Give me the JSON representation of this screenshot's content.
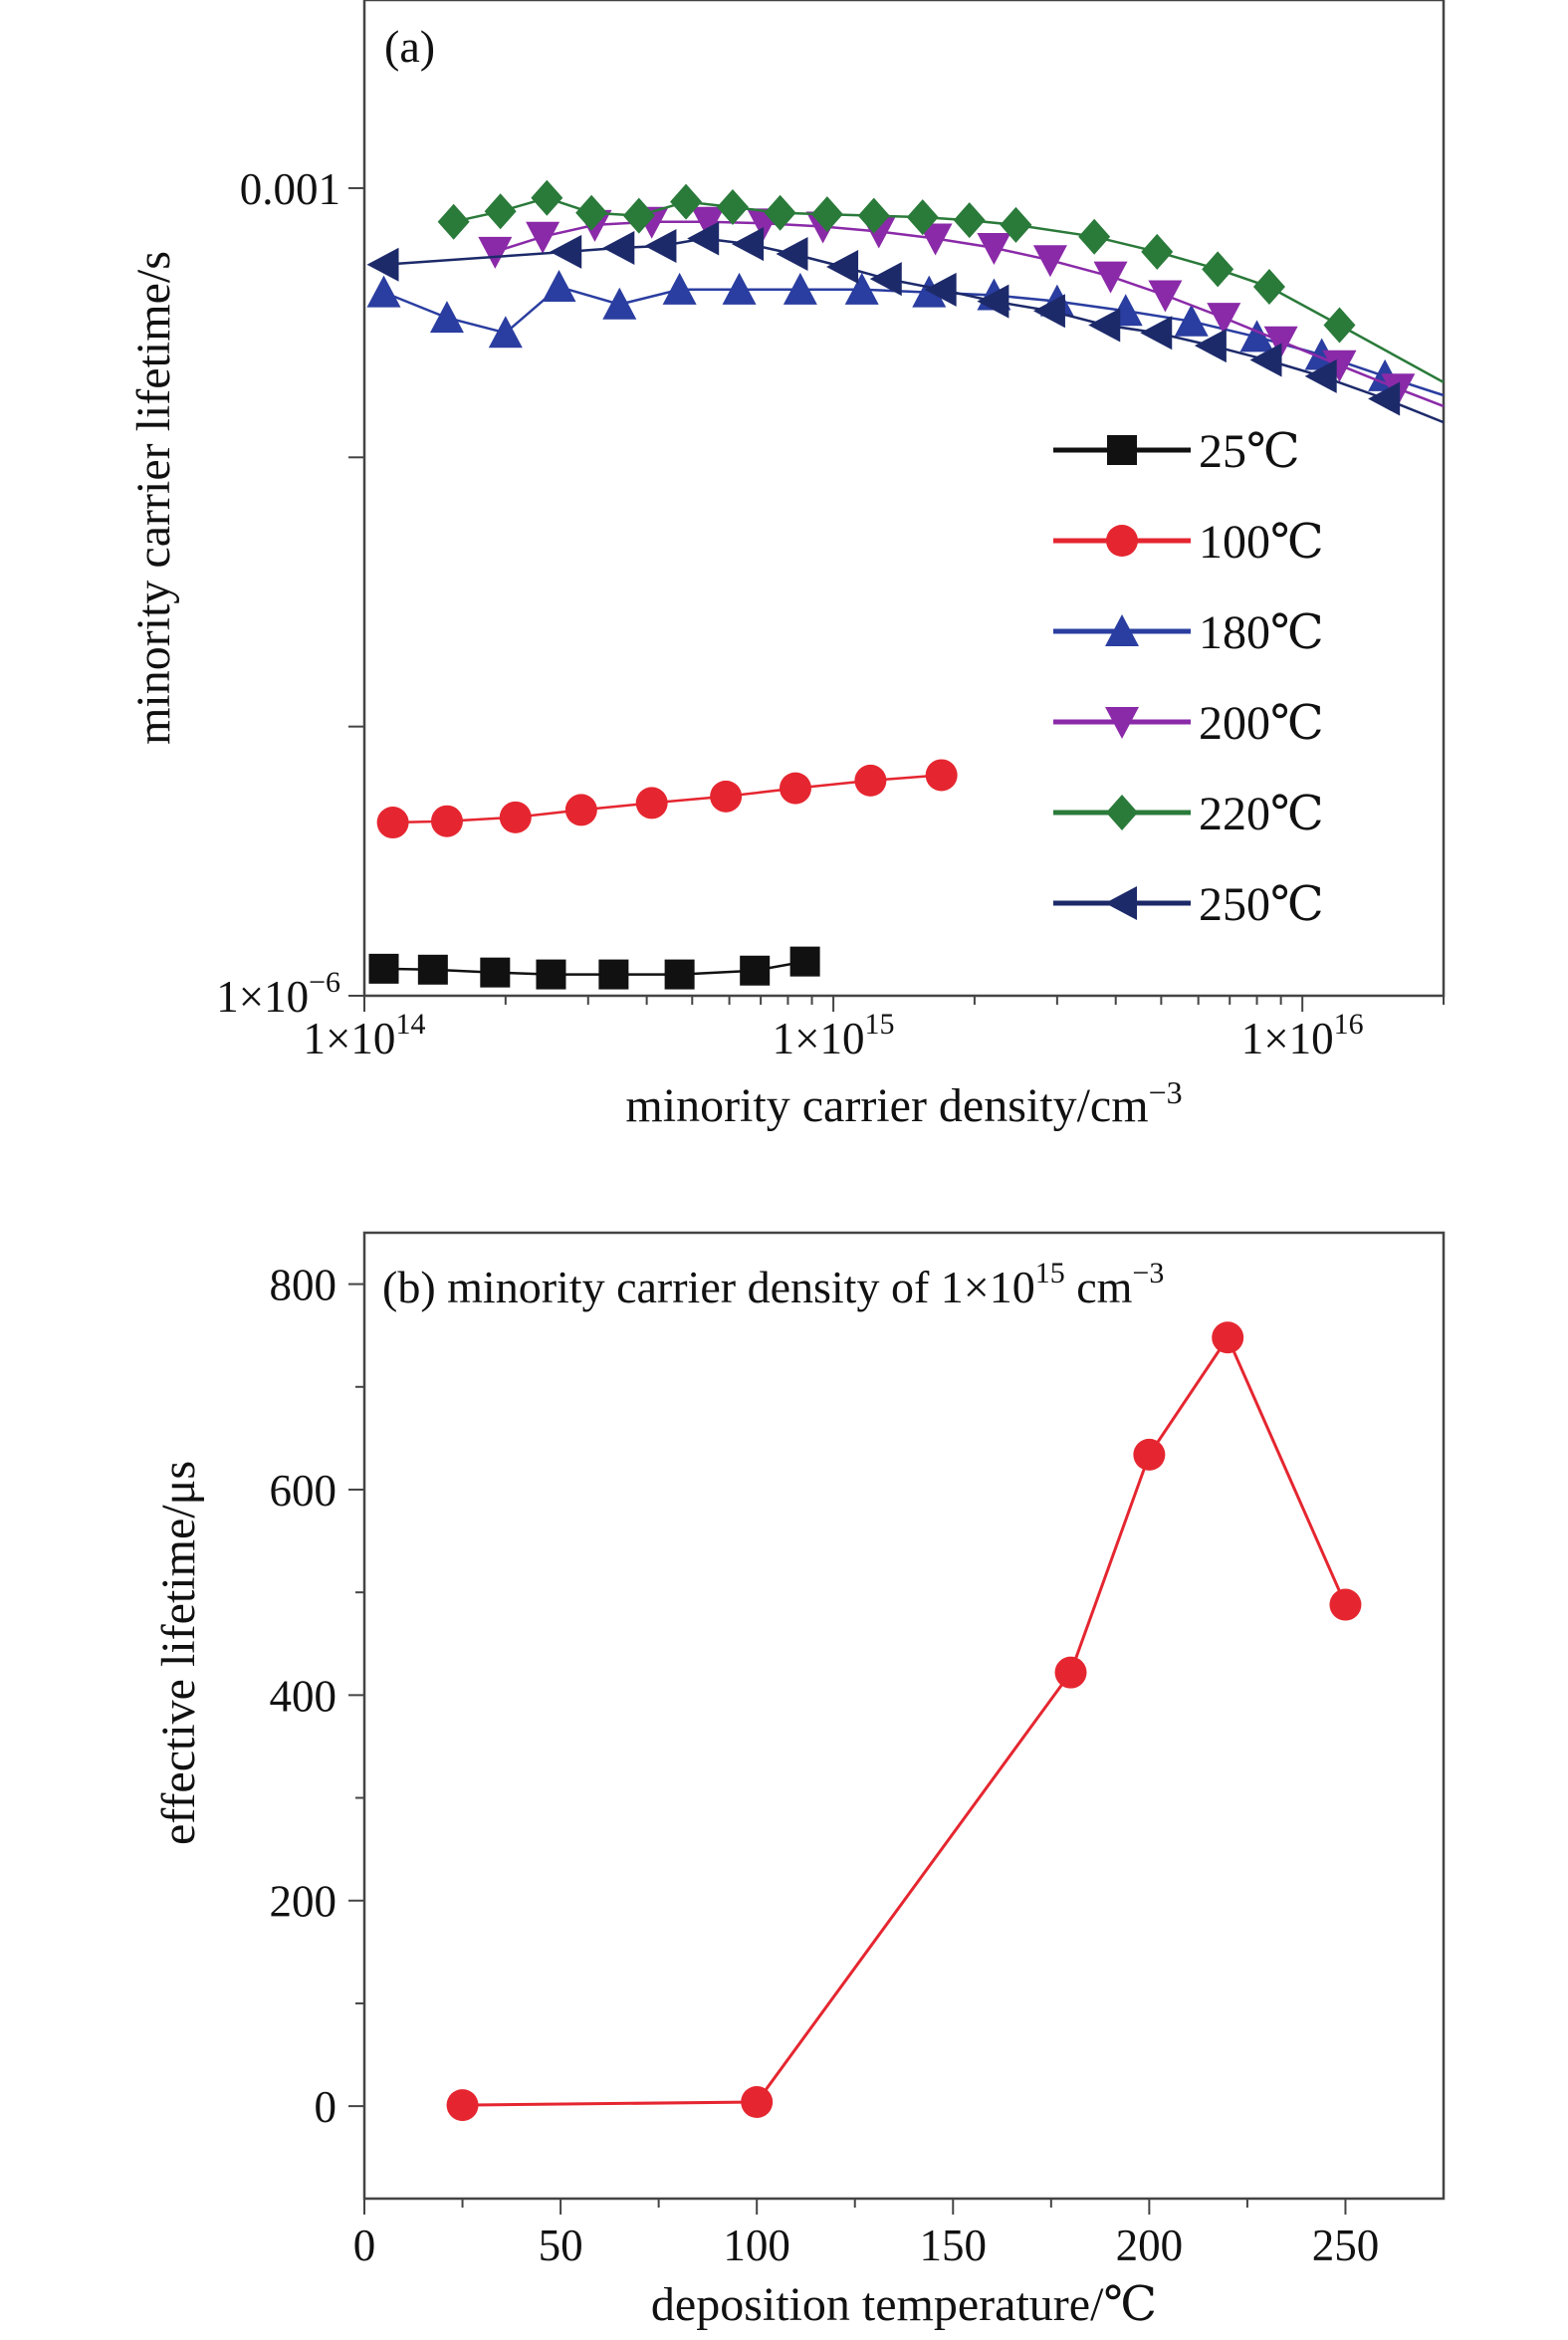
{
  "chart_data": [
    {
      "type": "line",
      "panel_label": "(a)",
      "xscale": "log",
      "yscale": "log",
      "xlim": [
        100000000000000.0,
        2e+16
      ],
      "ylim": [
        1e-06,
        0.005
      ],
      "x_ticks": [
        {
          "value": 100000000000000.0,
          "mantissa": "1×10",
          "exp": "14"
        },
        {
          "value": 1000000000000000.0,
          "mantissa": "1×10",
          "exp": "15"
        },
        {
          "value": 1e+16,
          "mantissa": "1×10",
          "exp": "16"
        }
      ],
      "y_ticks": [
        {
          "value": 1e-06,
          "mantissa": "1×10",
          "exp": "−6"
        },
        {
          "value": 0.001,
          "mantissa": "0.001",
          "exp": ""
        }
      ],
      "xlabel": {
        "text": "minority carrier density/cm",
        "sup": "−3"
      },
      "ylabel": "minority carrier lifetime/s",
      "legend_position": "right",
      "series": [
        {
          "name": "25℃",
          "color": "#111111",
          "marker": "square",
          "x": [
            110000000000000.0,
            140000000000000.0,
            190000000000000.0,
            250000000000000.0,
            340000000000000.0,
            470000000000000.0,
            680000000000000.0,
            870000000000000.0
          ],
          "y": [
            1.26e-06,
            1.25e-06,
            1.22e-06,
            1.2e-06,
            1.2e-06,
            1.2e-06,
            1.24e-06,
            1.34e-06
          ]
        },
        {
          "name": "100℃",
          "color": "#e52630",
          "marker": "circle",
          "x": [
            115000000000000.0,
            150000000000000.0,
            210000000000000.0,
            290000000000000.0,
            410000000000000.0,
            590000000000000.0,
            830000000000000.0,
            1200000000000000.0,
            1700000000000000.0
          ],
          "y": [
            4.4e-06,
            4.45e-06,
            4.6e-06,
            4.9e-06,
            5.2e-06,
            5.5e-06,
            5.9e-06,
            6.3e-06,
            6.6e-06
          ]
        },
        {
          "name": "180℃",
          "color": "#2a3da0",
          "marker": "up",
          "x": [
            110000000000000.0,
            150000000000000.0,
            200000000000000.0,
            260000000000000.0,
            350000000000000.0,
            470000000000000.0,
            630000000000000.0,
            850000000000000.0,
            1150000000000000.0,
            1600000000000000.0,
            2200000000000000.0,
            3000000000000000.0,
            4200000000000000.0,
            5800000000000000.0,
            8000000000000000.0,
            1.1e+16,
            1.5e+16,
            2e+16
          ],
          "y": [
            0.00041,
            0.00033,
            0.00029,
            0.00043,
            0.00037,
            0.00042,
            0.00042,
            0.00042,
            0.00042,
            0.00041,
            0.0004,
            0.00038,
            0.00035,
            0.00032,
            0.00028,
            0.00024,
            0.0002,
            0.00017
          ]
        },
        {
          "name": "200℃",
          "color": "#8a2aa8",
          "marker": "down",
          "x": [
            190000000000000.0,
            240000000000000.0,
            310000000000000.0,
            410000000000000.0,
            540000000000000.0,
            710000000000000.0,
            950000000000000.0,
            1250000000000000.0,
            1650000000000000.0,
            2200000000000000.0,
            2900000000000000.0,
            3900000000000000.0,
            5100000000000000.0,
            6800000000000000.0,
            9000000000000000.0,
            1.2e+16,
            1.6e+16,
            2e+16
          ],
          "y": [
            0.00058,
            0.00066,
            0.00073,
            0.00075,
            0.00075,
            0.00074,
            0.00072,
            0.00069,
            0.00065,
            0.0006,
            0.00054,
            0.00047,
            0.0004,
            0.00033,
            0.00027,
            0.00022,
            0.00018,
            0.000155
          ]
        },
        {
          "name": "220℃",
          "color": "#2a7a3a",
          "marker": "diamond",
          "x": [
            155000000000000.0,
            195000000000000.0,
            245000000000000.0,
            305000000000000.0,
            385000000000000.0,
            485000000000000.0,
            610000000000000.0,
            770000000000000.0,
            970000000000000.0,
            1220000000000000.0,
            1550000000000000.0,
            1950000000000000.0,
            2450000000000000.0,
            3600000000000000.0,
            4900000000000000.0,
            6600000000000000.0,
            8500000000000000.0,
            1.2e+16,
            2e+16
          ],
          "y": [
            0.00075,
            0.00082,
            0.00092,
            0.00081,
            0.00079,
            0.00089,
            0.00085,
            0.00081,
            0.0008,
            0.00079,
            0.00078,
            0.00076,
            0.00073,
            0.00066,
            0.00058,
            0.0005,
            0.00043,
            0.00031,
            0.00019
          ]
        },
        {
          "name": "250℃",
          "color": "#1d2a6a",
          "marker": "left",
          "x": [
            110000000000000.0,
            270000000000000.0,
            350000000000000.0,
            430000000000000.0,
            530000000000000.0,
            660000000000000.0,
            820000000000000.0,
            1050000000000000.0,
            1300000000000000.0,
            1700000000000000.0,
            2200000000000000.0,
            2900000000000000.0,
            3800000000000000.0,
            4900000000000000.0,
            6400000000000000.0,
            8400000000000000.0,
            1.1e+16,
            1.5e+16,
            2e+16
          ],
          "y": [
            0.00052,
            0.00058,
            0.0006,
            0.00061,
            0.00065,
            0.00062,
            0.00057,
            0.00051,
            0.00046,
            0.00042,
            0.00038,
            0.00035,
            0.00031,
            0.00029,
            0.00026,
            0.00023,
            0.0002,
            0.000165,
            0.000135
          ]
        }
      ]
    },
    {
      "type": "line",
      "panel_label": "(b) minority carrier density of 1×10",
      "panel_label_sup": "15",
      "panel_label_tail": " cm",
      "panel_label_tail_sup": "−3",
      "xlim": [
        0,
        275
      ],
      "ylim": [
        -90,
        850
      ],
      "x_ticks": [
        0,
        50,
        100,
        150,
        200,
        250
      ],
      "y_ticks": [
        0,
        200,
        400,
        600,
        800
      ],
      "xlabel": "deposition temperature/℃",
      "ylabel": "effective lifetime/μs",
      "series": [
        {
          "color": "#e52630",
          "marker": "circle",
          "x": [
            25,
            100,
            180,
            200,
            220,
            250
          ],
          "y": [
            1,
            4,
            422,
            634,
            748,
            488
          ]
        }
      ]
    }
  ]
}
